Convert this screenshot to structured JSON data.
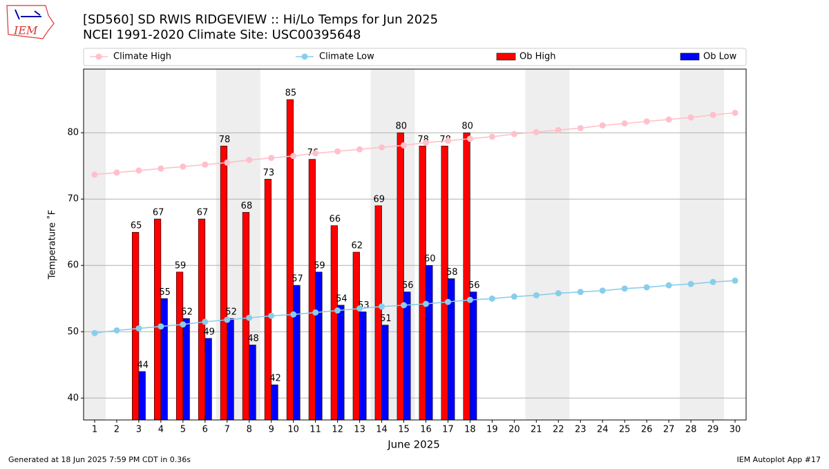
{
  "chart_data": {
    "type": "bar",
    "title": "[SD560] SD RWIS RIDGEVIEW :: Hi/Lo Temps for Jun 2025",
    "subtitle": "NCEI 1991-2020 Climate Site: USC00395648",
    "logo": "IEM",
    "x_label": "June 2025",
    "y_label": "Temperature ˚F",
    "footer_left": "Generated at 18 Jun 2025 7:59 PM CDT in 0.36s",
    "footer_right": "IEM Autoplot App #17",
    "x": [
      1,
      2,
      3,
      4,
      5,
      6,
      7,
      8,
      9,
      10,
      11,
      12,
      13,
      14,
      15,
      16,
      17,
      18,
      19,
      20,
      21,
      22,
      23,
      24,
      25,
      26,
      27,
      28,
      29,
      30
    ],
    "xlim": [
      0.5,
      30.5
    ],
    "ylim": [
      36.7,
      89.6
    ],
    "yticks": [
      40,
      50,
      60,
      70,
      80
    ],
    "grid": true,
    "series": [
      {
        "name": "Climate High",
        "type": "line",
        "color": "#ffc0cb",
        "values": [
          73.7,
          74.0,
          74.3,
          74.6,
          74.9,
          75.2,
          75.5,
          75.9,
          76.2,
          76.5,
          76.9,
          77.2,
          77.5,
          77.8,
          78.1,
          78.5,
          78.8,
          79.1,
          79.4,
          79.8,
          80.1,
          80.4,
          80.7,
          81.1,
          81.4,
          81.7,
          82.0,
          82.3,
          82.7,
          83.0
        ]
      },
      {
        "name": "Climate Low",
        "type": "line",
        "color": "#87ceeb",
        "values": [
          49.8,
          50.2,
          50.5,
          50.8,
          51.1,
          51.5,
          51.8,
          52.1,
          52.4,
          52.6,
          52.9,
          53.2,
          53.5,
          53.8,
          54.0,
          54.2,
          54.5,
          54.8,
          55.0,
          55.3,
          55.5,
          55.8,
          56.0,
          56.2,
          56.5,
          56.7,
          57.0,
          57.2,
          57.5,
          57.7
        ]
      },
      {
        "name": "Ob High",
        "type": "bar",
        "color": "#ff0000",
        "values": [
          null,
          null,
          65,
          67,
          59,
          67,
          78,
          68,
          73,
          85,
          76,
          66,
          62,
          69,
          80,
          78,
          78,
          80,
          null,
          null,
          null,
          null,
          null,
          null,
          null,
          null,
          null,
          null,
          null,
          null
        ]
      },
      {
        "name": "Ob Low",
        "type": "bar",
        "color": "#0000ff",
        "values": [
          null,
          null,
          44,
          55,
          52,
          49,
          52,
          48,
          42,
          57,
          59,
          54,
          53,
          51,
          56,
          60,
          58,
          56,
          null,
          null,
          null,
          null,
          null,
          null,
          null,
          null,
          null,
          null,
          null,
          null
        ]
      }
    ]
  }
}
